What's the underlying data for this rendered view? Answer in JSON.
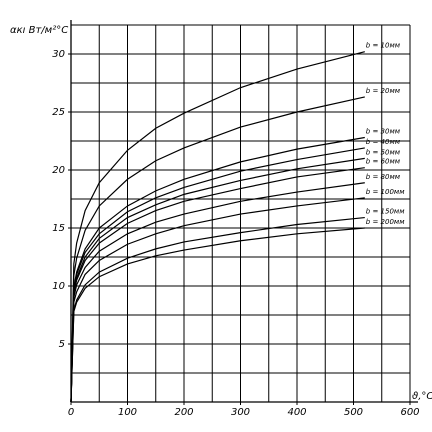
{
  "chart_data": {
    "type": "line",
    "y_label": "αкı Вт/м²°С",
    "x_label": "ϑ,°C",
    "x": [
      0,
      5,
      10,
      25,
      50,
      100,
      150,
      200,
      300,
      400,
      520
    ],
    "series": [
      {
        "name": "b = 10мм",
        "color": "#000000",
        "values": [
          0,
          11.9,
          13.7,
          16.5,
          18.9,
          21.7,
          23.6,
          24.9,
          27.1,
          28.7,
          30.2
        ]
      },
      {
        "name": "b = 20мм",
        "color": "#000000",
        "values": [
          0,
          10.9,
          12.4,
          14.8,
          16.9,
          19.2,
          20.8,
          21.9,
          23.7,
          25.0,
          26.3
        ]
      },
      {
        "name": "b = 30мм",
        "color": "#000000",
        "values": [
          0,
          9.9,
          11.2,
          13.2,
          15.0,
          16.9,
          18.2,
          19.2,
          20.7,
          21.8,
          22.8
        ]
      },
      {
        "name": "b = 40мм",
        "color": "#000000",
        "values": [
          0,
          9.7,
          11.0,
          12.9,
          14.5,
          16.4,
          17.6,
          18.5,
          19.9,
          20.9,
          21.9
        ]
      },
      {
        "name": "b = 50мм",
        "color": "#000000",
        "values": [
          0,
          9.5,
          10.7,
          12.5,
          14.1,
          15.9,
          17.0,
          17.9,
          19.1,
          20.1,
          21.0
        ]
      },
      {
        "name": "b = 60мм",
        "color": "#000000",
        "values": [
          0,
          9.4,
          10.5,
          12.2,
          13.7,
          15.4,
          16.5,
          17.3,
          18.4,
          19.4,
          20.2
        ]
      },
      {
        "name": "b = 80мм",
        "color": "#000000",
        "values": [
          0,
          9.0,
          10.1,
          11.6,
          13.0,
          14.5,
          15.5,
          16.2,
          17.3,
          18.1,
          18.9
        ]
      },
      {
        "name": "b = 100мм",
        "color": "#000000",
        "values": [
          0,
          8.6,
          9.5,
          11.0,
          12.2,
          13.6,
          14.5,
          15.2,
          16.2,
          16.9,
          17.6
        ]
      },
      {
        "name": "b = 150мм",
        "color": "#000000",
        "values": [
          0,
          7.9,
          8.8,
          10.1,
          11.2,
          12.4,
          13.2,
          13.8,
          14.6,
          15.3,
          15.9
        ]
      },
      {
        "name": "b = 200мм",
        "color": "#000000",
        "values": [
          0,
          7.8,
          8.6,
          9.8,
          10.8,
          11.9,
          12.6,
          13.1,
          13.9,
          14.5,
          15.0
        ]
      }
    ],
    "xlim": [
      0,
      600
    ],
    "ylim": [
      0,
      32.5
    ],
    "xticks": [
      0,
      100,
      200,
      300,
      400,
      500,
      600
    ],
    "yticks": [
      5,
      10,
      15,
      20,
      25,
      30
    ],
    "xgrid": [
      50,
      100,
      150,
      200,
      250,
      300,
      350,
      400,
      450,
      500,
      550,
      600
    ],
    "ygrid": [
      2.5,
      5,
      7.5,
      10,
      12.5,
      15,
      17.5,
      20,
      22.5,
      25,
      27.5,
      30,
      32.5
    ],
    "grid": true
  }
}
